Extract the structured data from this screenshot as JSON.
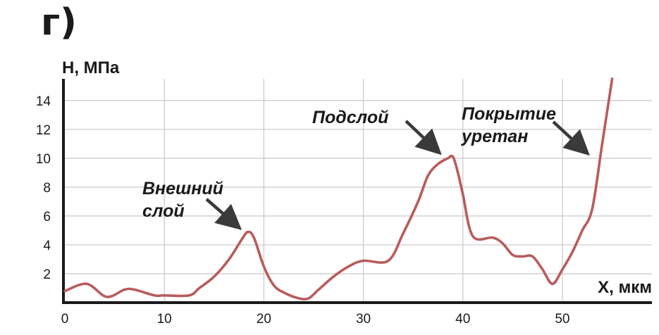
{
  "panel_label": "г)",
  "chart_data": {
    "type": "line",
    "title": "",
    "xlabel": "X, мкм",
    "ylabel": "H, МПа",
    "xlim": [
      0,
      59
    ],
    "ylim": [
      0,
      15.5
    ],
    "xticks": [
      0,
      10,
      20,
      30,
      40,
      50
    ],
    "yticks": [
      2,
      4,
      6,
      8,
      10,
      12,
      14
    ],
    "grid": true,
    "series_color": "#b85c5c",
    "series": [
      {
        "x": [
          0,
          2.2,
          4.2,
          6,
          7,
          9,
          10,
          12.5,
          13.5,
          15,
          16.5,
          17.8,
          18.4,
          19,
          20,
          21,
          22,
          23.5,
          24.5,
          25.5,
          27,
          28.5,
          30,
          32.5,
          34,
          35.5,
          36.5,
          37.5,
          38.5,
          39,
          39.5,
          40,
          41,
          43,
          44,
          45,
          46,
          47,
          48,
          49,
          50,
          51,
          52,
          53,
          54,
          55
        ],
        "y": [
          0.8,
          1.3,
          0.4,
          0.9,
          0.9,
          0.5,
          0.5,
          0.5,
          1.0,
          1.8,
          3.0,
          4.4,
          4.9,
          4.5,
          2.5,
          1.2,
          0.7,
          0.3,
          0.3,
          0.9,
          1.8,
          2.5,
          2.9,
          2.9,
          4.8,
          7.0,
          8.8,
          9.6,
          10.0,
          10.1,
          9.0,
          7.5,
          4.6,
          4.5,
          4.1,
          3.3,
          3.2,
          3.2,
          2.3,
          1.3,
          2.3,
          3.5,
          5.0,
          6.5,
          11.0,
          15.5
        ]
      }
    ],
    "annotations": [
      {
        "lines": [
          "Внешний",
          "слой"
        ]
      },
      {
        "lines": [
          "Подслой"
        ]
      },
      {
        "lines": [
          "Покрытие",
          "уретан"
        ]
      }
    ]
  }
}
